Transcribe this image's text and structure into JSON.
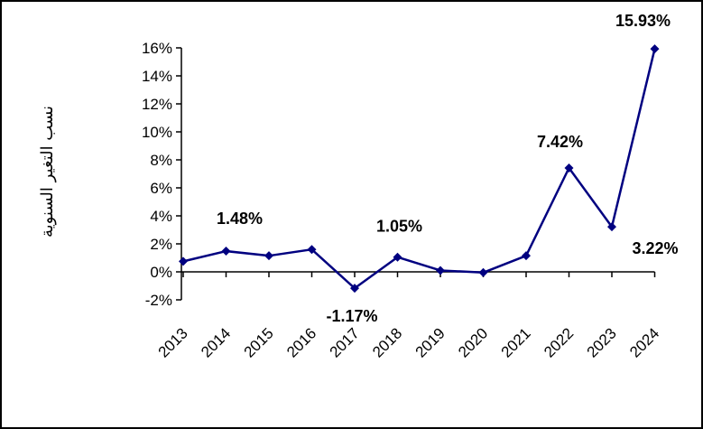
{
  "chart_data": {
    "type": "line",
    "title": "",
    "xlabel": "",
    "ylabel": "نسب التغير السنوية",
    "x": [
      "2013",
      "2014",
      "2015",
      "2016",
      "2017",
      "2018",
      "2019",
      "2020",
      "2021",
      "2022",
      "2023",
      "2024"
    ],
    "series": [
      {
        "values": [
          0.75,
          1.48,
          1.15,
          1.6,
          -1.17,
          1.05,
          0.1,
          -0.05,
          1.15,
          7.42,
          3.22,
          15.93
        ],
        "color": "#000080",
        "marker": "diamond"
      }
    ],
    "y_ticks": [
      "-2%",
      "0%",
      "2%",
      "4%",
      "6%",
      "8%",
      "10%",
      "12%",
      "14%",
      "16%"
    ],
    "ylim": [
      -2,
      16
    ],
    "grid": false,
    "legend": "none",
    "data_labels": [
      {
        "x": "2014",
        "text": "1.48%"
      },
      {
        "x": "2017",
        "text": "-1.17%"
      },
      {
        "x": "2018",
        "text": "1.05%"
      },
      {
        "x": "2022",
        "text": "7.42%"
      },
      {
        "x": "2023",
        "text": "3.22%"
      },
      {
        "x": "2024",
        "text": "15.93%"
      }
    ]
  }
}
